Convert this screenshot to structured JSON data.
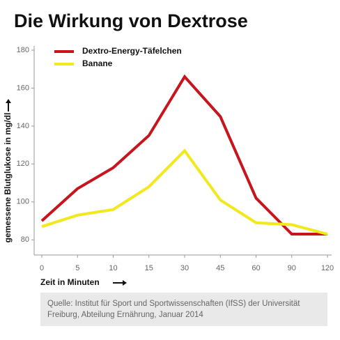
{
  "chart_data": {
    "type": "line",
    "title": "Die Wirkung von Dextrose",
    "x_label": "Zeit in Minuten",
    "y_label": "gemessene Blutglukose in mg/dl",
    "categories": [
      "0",
      "5",
      "10",
      "15",
      "30",
      "45",
      "60",
      "90",
      "120"
    ],
    "series": [
      {
        "name": "Dextro-Energy-Täfelchen",
        "color": "#c8141c",
        "values": [
          90,
          107,
          118,
          135,
          166,
          145,
          102,
          83,
          83
        ]
      },
      {
        "name": "Banane",
        "color": "#f2e81e",
        "values": [
          87,
          93,
          96,
          108,
          127,
          101,
          89,
          88,
          83
        ]
      }
    ],
    "ylim": [
      72,
      180
    ],
    "yticks": [
      80,
      100,
      120,
      140,
      160,
      180
    ],
    "grid": false,
    "legend": "upper left",
    "source": "Quelle: Institut für Sport und Sportwissenschaften (IfSS) der Universität Freiburg, Abteilung Ernährung, Januar 2014"
  }
}
